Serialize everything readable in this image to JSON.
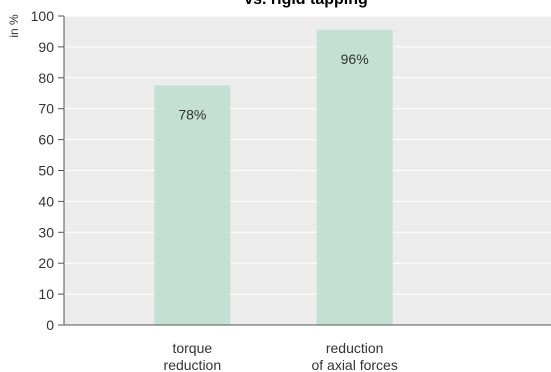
{
  "chart_data": {
    "type": "bar",
    "title": "vs. rigid tapping",
    "xlabel": "",
    "ylabel": "in %",
    "ylim": [
      0,
      100
    ],
    "yticks": [
      0,
      10,
      20,
      30,
      40,
      50,
      60,
      70,
      80,
      90,
      100
    ],
    "categories": [
      [
        "torque",
        "reduction"
      ],
      [
        "reduction",
        "of axial forces"
      ]
    ],
    "values": [
      77.5,
      95.5
    ],
    "data_labels": [
      "78%",
      "96%"
    ],
    "grid": true,
    "colors": {
      "bar": "#c3e0d2",
      "plot_bg": "#ececec",
      "grid": "#ffffff",
      "axis": "#555555"
    }
  }
}
